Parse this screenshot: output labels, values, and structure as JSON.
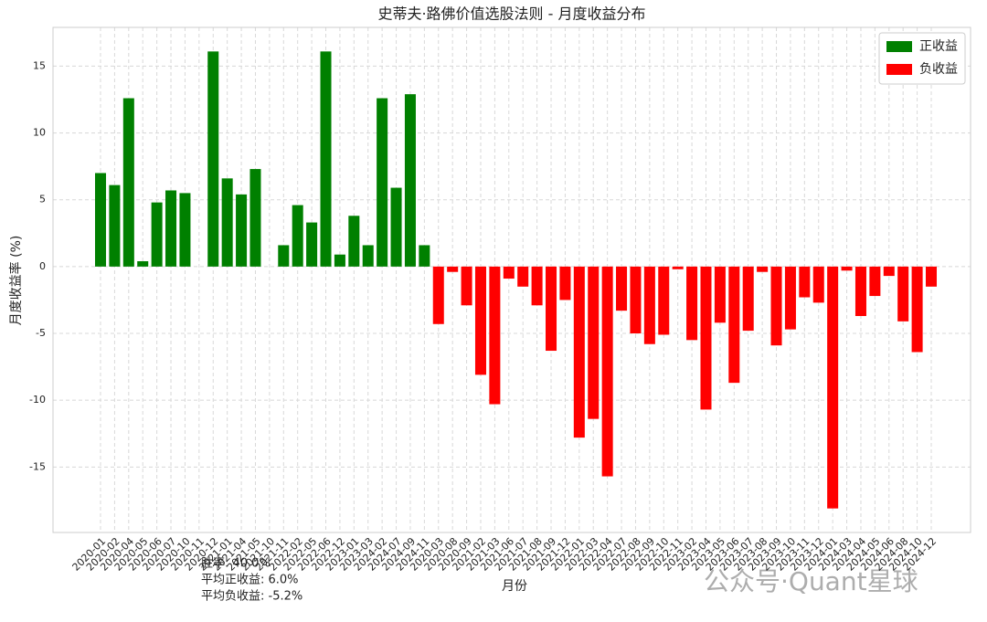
{
  "chart_data": {
    "type": "bar",
    "title": "史蒂夫·路佛价值选股法则 - 月度收益分布",
    "xlabel": "月份",
    "ylabel": "月度收益率 (%)",
    "categories": [
      "2020-01",
      "2020-02",
      "2020-04",
      "2020-05",
      "2020-06",
      "2020-07",
      "2020-10",
      "2020-11",
      "2020-12",
      "2021-01",
      "2021-04",
      "2021-05",
      "2021-10",
      "2021-11",
      "2022-02",
      "2022-05",
      "2022-06",
      "2022-12",
      "2023-01",
      "2023-03",
      "2024-02",
      "2024-07",
      "2024-09",
      "2024-11",
      "2020-03",
      "2020-08",
      "2020-09",
      "2021-02",
      "2021-03",
      "2021-06",
      "2021-07",
      "2021-08",
      "2021-09",
      "2021-12",
      "2022-01",
      "2022-03",
      "2022-04",
      "2022-07",
      "2022-08",
      "2022-09",
      "2022-10",
      "2022-11",
      "2023-02",
      "2023-04",
      "2023-05",
      "2023-06",
      "2023-07",
      "2023-08",
      "2023-09",
      "2023-10",
      "2023-11",
      "2023-12",
      "2024-01",
      "2024-03",
      "2024-04",
      "2024-05",
      "2024-06",
      "2024-08",
      "2024-10",
      "2024-12"
    ],
    "series": [
      {
        "name": "正收益",
        "color": "#008000",
        "values": [
          7.0,
          6.1,
          12.6,
          0.4,
          4.8,
          5.7,
          5.5,
          0,
          16.1,
          6.6,
          5.4,
          7.3,
          0,
          1.6,
          4.6,
          3.3,
          16.1,
          0.9,
          3.8,
          1.6,
          12.6,
          5.9,
          12.9,
          1.6,
          null,
          null,
          null,
          null,
          null,
          null,
          null,
          null,
          null,
          null,
          null,
          null,
          null,
          null,
          null,
          null,
          null,
          null,
          null,
          null,
          null,
          null,
          null,
          null,
          null,
          null,
          null,
          null,
          null,
          null,
          null,
          null,
          null,
          null,
          null,
          null
        ]
      },
      {
        "name": "负收益",
        "color": "#ff0000",
        "values": [
          null,
          null,
          null,
          null,
          null,
          null,
          null,
          null,
          null,
          null,
          null,
          null,
          null,
          null,
          null,
          null,
          null,
          null,
          null,
          null,
          null,
          null,
          null,
          null,
          -4.3,
          -0.4,
          -2.9,
          -8.1,
          -10.3,
          -0.9,
          -1.5,
          -2.9,
          -6.3,
          -2.5,
          -12.8,
          -11.4,
          -15.7,
          -3.3,
          -5.0,
          -5.8,
          -5.1,
          -0.2,
          -5.5,
          -10.7,
          -4.2,
          -8.7,
          -4.8,
          -0.4,
          -5.9,
          -4.7,
          -2.3,
          -2.7,
          -18.1,
          -0.3,
          -3.7,
          -2.2,
          -0.7,
          -4.1,
          -6.4,
          -1.5
        ]
      }
    ],
    "ylim": [
      -19.9,
      17.9
    ],
    "yticks": [
      -15,
      -10,
      -5,
      0,
      5,
      10,
      15
    ],
    "grid": true,
    "legend": "upper right",
    "annotations": [
      "胜率: 40.0%",
      "平均正收益: 6.0%",
      "平均负收益: -5.2%"
    ],
    "watermark": "公众号·Quant星球"
  }
}
